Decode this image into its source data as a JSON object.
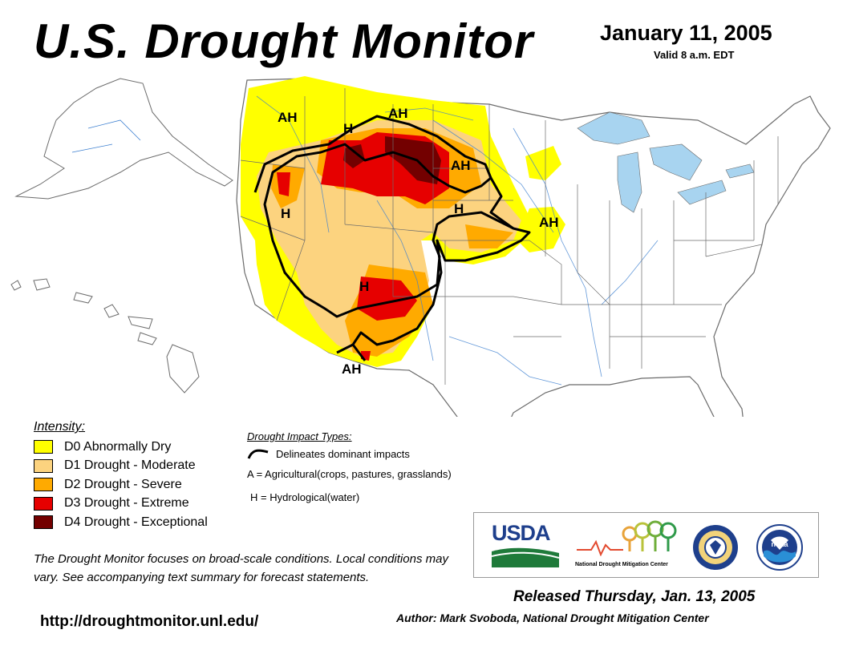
{
  "header": {
    "title": "U.S. Drought Monitor",
    "date": "January 11, 2005",
    "valid": "Valid 8 a.m. EDT"
  },
  "map": {
    "labels": [
      "AH",
      "H",
      "AH",
      "AH",
      "H",
      "H",
      "AH",
      "H",
      "AH"
    ],
    "colors": {
      "d0": "#ffff00",
      "d1": "#fcd37f",
      "d2": "#ffaa00",
      "d3": "#e60000",
      "d4": "#730000",
      "water": "#9fd5f5",
      "lakes": "#a8d4f0",
      "borders": "#6b6b6b",
      "rivers": "#3c7fd0"
    }
  },
  "legend": {
    "title": "Intensity:",
    "items": [
      {
        "label": "D0 Abnormally Dry",
        "color": "#ffff00"
      },
      {
        "label": "D1 Drought - Moderate",
        "color": "#fcd37f"
      },
      {
        "label": "D2 Drought - Severe",
        "color": "#ffaa00"
      },
      {
        "label": "D3 Drought - Extreme",
        "color": "#e60000"
      },
      {
        "label": "D4 Drought - Exceptional",
        "color": "#730000"
      }
    ]
  },
  "impacts": {
    "title": "Drought Impact Types:",
    "line_desc": "Delineates dominant impacts",
    "a_desc": "A = Agricultural(crops, pastures, grasslands)",
    "h_desc": "H = Hydrological(water)"
  },
  "note": "The Drought Monitor focuses on broad-scale conditions. Local conditions may vary. See accompanying text summary for forecast statements.",
  "url": "http://droughtmonitor.unl.edu/",
  "released": "Released Thursday, Jan. 13, 2005",
  "author": "Author: Mark Svoboda, National Drought Mitigation Center",
  "logos": {
    "usda": "USDA",
    "ndmc_a": "National",
    "ndmc_b": "Drought Mitigation Center",
    "noaa": "noaa"
  }
}
